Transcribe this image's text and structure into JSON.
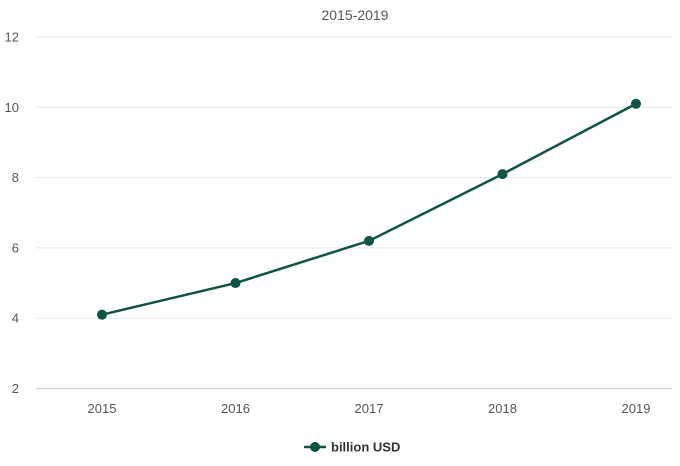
{
  "chart_data": {
    "type": "line",
    "title": "2015-2019",
    "categories": [
      "2015",
      "2016",
      "2017",
      "2018",
      "2019"
    ],
    "series": [
      {
        "name": "billion USD",
        "values": [
          4.1,
          5.0,
          6.2,
          8.1,
          10.1
        ],
        "color": "#0d5447"
      }
    ],
    "xlabel": "",
    "ylabel": "",
    "ylim": [
      2,
      12
    ],
    "yticks": [
      "2",
      "4",
      "6",
      "8",
      "10",
      "12"
    ],
    "grid": true,
    "legend": "bottom-center"
  }
}
